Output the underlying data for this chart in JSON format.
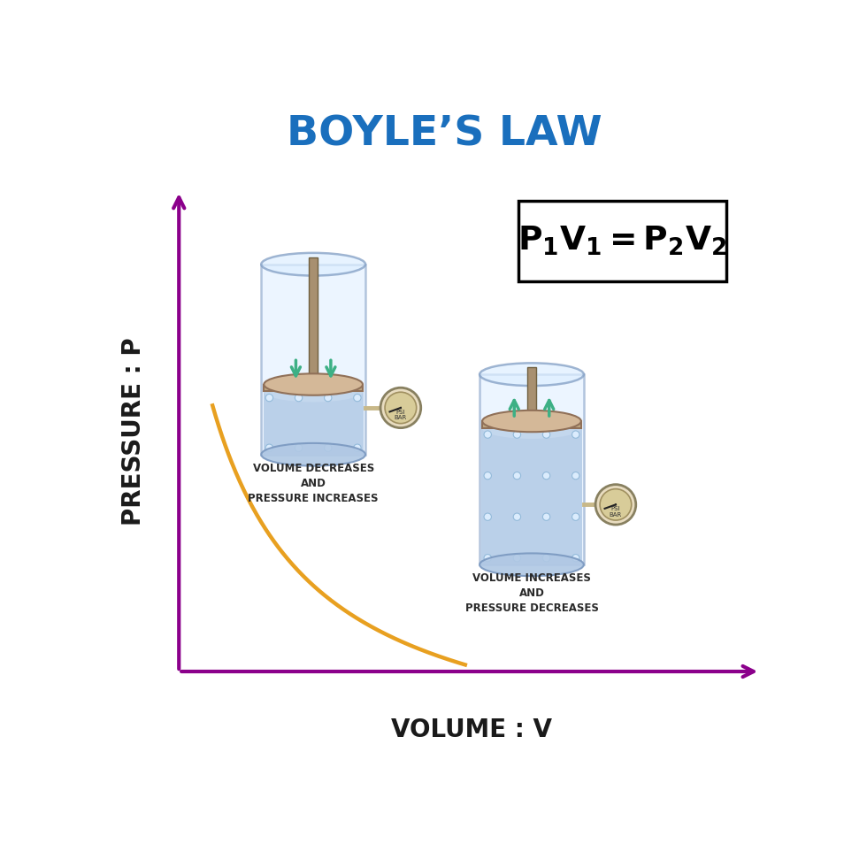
{
  "title": "BOYLE’S LAW",
  "title_color": "#1a6fbd",
  "title_fontsize": 34,
  "axis_color": "#8B008B",
  "curve_color": "#E8A020",
  "xlabel": "VOLUME : V",
  "ylabel": "PRESSURE : P",
  "label_fontsize": 20,
  "text1": "VOLUME DECREASES\nAND\nPRESSURE INCREASES",
  "text2": "VOLUME INCREASES\nAND\nPRESSURE DECREASES",
  "text_fontsize": 8.5,
  "bg_color": "#ffffff",
  "gas_color": "#b8cee8",
  "glass_edge": "#7a98c0",
  "glass_face": "#ddeeff",
  "piston_color": "#c0a882",
  "piston_edge": "#907058",
  "rod_color": "#a89070",
  "rod_edge": "#706040",
  "arrow_color": "#3db085",
  "gauge_bg": "#e8dcc0",
  "gauge_border": "#c0a870",
  "gauge_inner": "#d8cc99",
  "bubble_face": "#ddeeff",
  "bubble_edge": "#90b8d8"
}
